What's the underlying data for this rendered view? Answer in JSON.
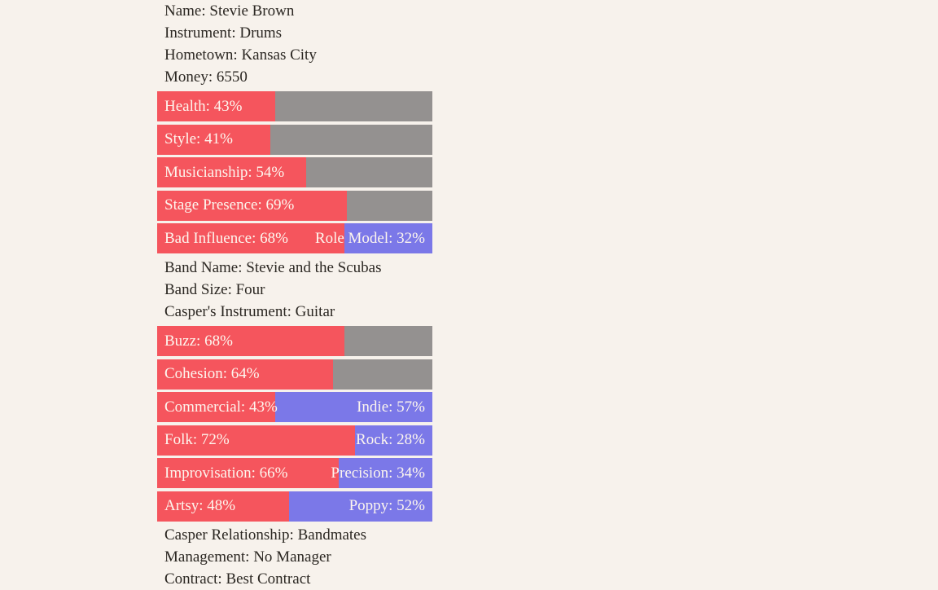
{
  "colors": {
    "bg": "#f7f2ec",
    "red": "#f5555d",
    "blue": "#7b78e8",
    "gray": "#949190",
    "ink": "#2b2722",
    "bartext": "#fdf6ee"
  },
  "character": {
    "lines": [
      "Name: Stevie Brown",
      "Instrument: Drums",
      "Hometown: Kansas City",
      "Money: 6550"
    ],
    "stats": [
      {
        "label": "Health: 43%",
        "value": 43
      },
      {
        "label": "Style: 41%",
        "value": 41
      },
      {
        "label": "Musicianship: 54%",
        "value": 54
      },
      {
        "label": "Stage Presence: 69%",
        "value": 69
      },
      {
        "label": "Bad Influence: 68%",
        "value": 68,
        "right_label": "Role Model: 32%",
        "right_value": 32
      }
    ]
  },
  "band": {
    "lines": [
      "Band Name: Stevie and the Scubas",
      "Band Size: Four",
      "Casper's Instrument: Guitar"
    ],
    "stats": [
      {
        "label": "Buzz: 68%",
        "value": 68
      },
      {
        "label": "Cohesion: 64%",
        "value": 64
      },
      {
        "label": "Commercial: 43%",
        "value": 43,
        "right_label": "Indie: 57%",
        "right_value": 57
      },
      {
        "label": "Folk: 72%",
        "value": 72,
        "right_label": "Rock: 28%",
        "right_value": 28
      },
      {
        "label": "Improvisation: 66%",
        "value": 66,
        "right_label": "Precision: 34%",
        "right_value": 34
      },
      {
        "label": "Artsy: 48%",
        "value": 48,
        "right_label": "Poppy: 52%",
        "right_value": 52
      }
    ]
  },
  "footer": {
    "lines": [
      "Casper Relationship: Bandmates",
      "Management: No Manager",
      "Contract: Best Contract"
    ]
  }
}
